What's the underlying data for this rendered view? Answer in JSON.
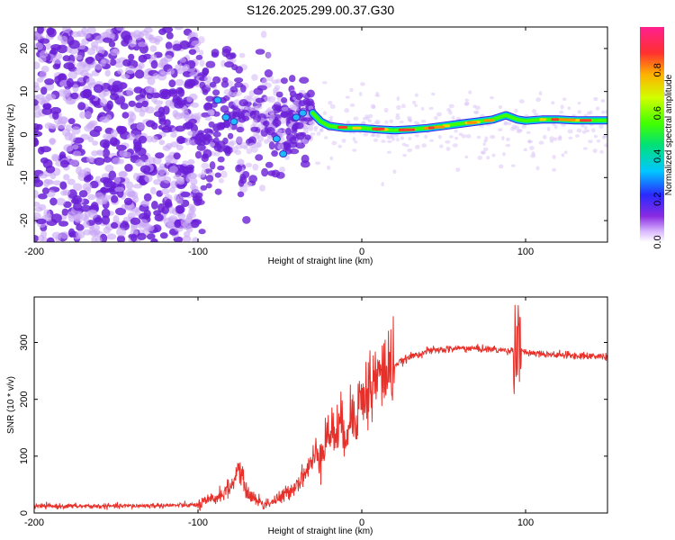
{
  "title": "S126.2025.299.00.37.G30",
  "colors": {
    "trace": "#e8302a",
    "background": "#ffffff",
    "axis": "#000000",
    "scatter": "#6a1fd6"
  },
  "chart_data": [
    {
      "type": "heatmap",
      "xlabel": "Height of straight line (km)",
      "ylabel": "Frequency (Hz)",
      "xlim": [
        -200,
        150
      ],
      "ylim": [
        -25,
        25
      ],
      "x_ticks": [
        -200,
        -100,
        0,
        100
      ],
      "x_tick_labels": [
        "-200",
        "-100",
        "0",
        "100"
      ],
      "y_ticks": [
        -20,
        -10,
        0,
        10,
        20
      ],
      "y_tick_labels": [
        "-20",
        "-10",
        "0",
        "10",
        "20"
      ],
      "colorbar": {
        "label": "Normalized spectral amplitude",
        "range": [
          0,
          1
        ],
        "ticks": [
          0.0,
          0.2,
          0.4,
          0.6,
          0.8
        ],
        "tick_labels": [
          "0.0",
          "0.2",
          "0.4",
          "0.6",
          "0.8"
        ]
      },
      "ridge": [
        {
          "x": -30,
          "y": 5
        },
        {
          "x": -25,
          "y": 3
        },
        {
          "x": -20,
          "y": 2
        },
        {
          "x": -10,
          "y": 1.5
        },
        {
          "x": 0,
          "y": 1.5
        },
        {
          "x": 10,
          "y": 1.2
        },
        {
          "x": 20,
          "y": 1.0
        },
        {
          "x": 30,
          "y": 1.2
        },
        {
          "x": 40,
          "y": 1.5
        },
        {
          "x": 50,
          "y": 2.0
        },
        {
          "x": 60,
          "y": 2.5
        },
        {
          "x": 70,
          "y": 3.0
        },
        {
          "x": 80,
          "y": 3.5
        },
        {
          "x": 88,
          "y": 4.5
        },
        {
          "x": 95,
          "y": 3.5
        },
        {
          "x": 100,
          "y": 3.2
        },
        {
          "x": 110,
          "y": 3.5
        },
        {
          "x": 120,
          "y": 3.5
        },
        {
          "x": 130,
          "y": 3.3
        },
        {
          "x": 150,
          "y": 3.3
        }
      ]
    },
    {
      "type": "line",
      "xlabel": "Height of straight line (km)",
      "ylabel": "SNR (10 * v/v)",
      "xlim": [
        -200,
        150
      ],
      "ylim": [
        0,
        380
      ],
      "x_ticks": [
        -200,
        -100,
        0,
        100
      ],
      "x_tick_labels": [
        "-200",
        "-100",
        "0",
        "100"
      ],
      "y_ticks": [
        0,
        100,
        200,
        300
      ],
      "y_tick_labels": [
        "0",
        "100",
        "200",
        "300"
      ],
      "series": [
        {
          "name": "SNR",
          "x": [
            -200,
            -150,
            -100,
            -90,
            -80,
            -75,
            -70,
            -60,
            -50,
            -40,
            -30,
            -20,
            -10,
            0,
            10,
            20,
            30,
            40,
            60,
            80,
            90,
            95,
            100,
            120,
            150
          ],
          "y": [
            12,
            12,
            14,
            25,
            45,
            80,
            35,
            15,
            25,
            50,
            90,
            140,
            150,
            200,
            240,
            260,
            275,
            285,
            290,
            288,
            285,
            290,
            283,
            278,
            275
          ]
        }
      ]
    }
  ]
}
